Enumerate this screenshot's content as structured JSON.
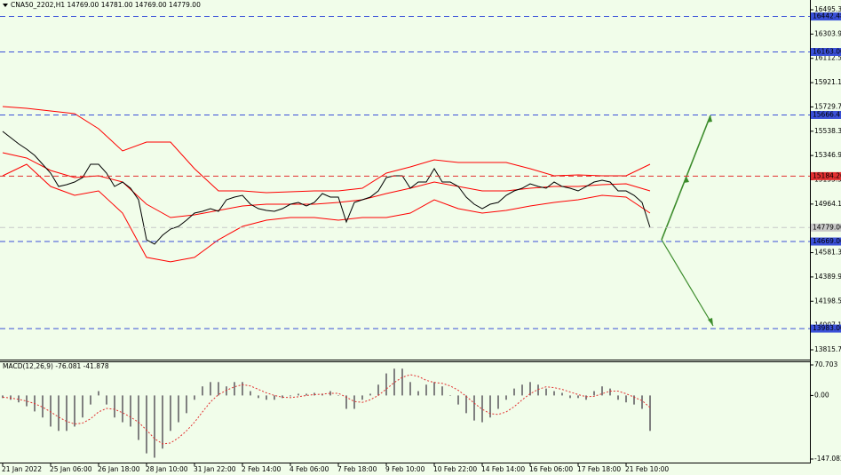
{
  "chart_data": [
    {
      "type": "line",
      "title": "CNA50_2202,H1  14769.00 14781.00 14769.00 14779.00",
      "categories": [
        "21 Jan 2022",
        null,
        null,
        null,
        null,
        null,
        "25 Jan 06:00",
        null,
        null,
        null,
        null,
        null,
        "26 Jan 18:00",
        null,
        null,
        null,
        null,
        null,
        "28 Jan 10:00",
        null,
        null,
        null,
        null,
        null,
        "31 Jan 22:00",
        null,
        null,
        null,
        null,
        null,
        "2 Feb 14:00",
        null,
        null,
        null,
        null,
        null,
        "4 Feb 06:00",
        null,
        null,
        null,
        null,
        null,
        "7 Feb 18:00",
        null,
        null,
        null,
        null,
        null,
        "9 Feb 10:00",
        null,
        null,
        null,
        null,
        null,
        "10 Feb 22:00",
        null,
        null,
        null,
        null,
        null,
        "14 Feb 14:00",
        null,
        null,
        null,
        null,
        null,
        "16 Feb 06:00",
        null,
        null,
        null,
        null,
        null,
        "17 Feb 18:00",
        null,
        null,
        null,
        null,
        null,
        "21 Feb 10:00",
        null,
        null,
        null
      ],
      "values": [
        15537,
        15488,
        15439,
        15397,
        15348,
        15278,
        15208,
        15103,
        15117,
        15138,
        15173,
        15278,
        15278,
        15208,
        15103,
        15138,
        15089,
        14998,
        14683,
        14648,
        14718,
        14767,
        14788,
        14837,
        14893,
        14907,
        14928,
        14907,
        14998,
        15019,
        15033,
        14963,
        14928,
        14914,
        14907,
        14928,
        14963,
        14977,
        14949,
        14977,
        15047,
        15019,
        15019,
        14823,
        14977,
        14998,
        15019,
        15068,
        15173,
        15187,
        15187,
        15089,
        15138,
        15138,
        15243,
        15138,
        15138,
        15103,
        15019,
        14963,
        14928,
        14963,
        14977,
        15033,
        15068,
        15089,
        15124,
        15103,
        15089,
        15138,
        15103,
        15089,
        15068,
        15103,
        15138,
        15152,
        15138,
        15068,
        15068,
        15033,
        14977,
        14779
      ],
      "color": "#000000",
      "bands": {
        "color": "#ff0000",
        "x": [
          0,
          3,
          6,
          9,
          12,
          15,
          18,
          21,
          24,
          27,
          30,
          33,
          36,
          39,
          42,
          45,
          48,
          51,
          54,
          57,
          60,
          63,
          66,
          69,
          72,
          75,
          78,
          81
        ],
        "series": [
          {
            "values": [
              15733,
              15719,
              15698,
              15677,
              15558,
              15383,
              15453,
              15453,
              15243,
              15068,
              15068,
              15054,
              15061,
              15068,
              15068,
              15089,
              15208,
              15257,
              15313,
              15292,
              15292,
              15292,
              15243,
              15187,
              15194,
              15187,
              15187,
              15278
            ]
          },
          {
            "values": [
              15369,
              15327,
              15229,
              15173,
              15187,
              15138,
              14963,
              14858,
              14879,
              14914,
              14949,
              14963,
              14963,
              14963,
              14977,
              14998,
              15047,
              15089,
              15138,
              15103,
              15068,
              15068,
              15089,
              15103,
              15103,
              15117,
              15124,
              15068
            ]
          },
          {
            "values": [
              15187,
              15278,
              15103,
              15033,
              15068,
              14893,
              14544,
              14509,
              14544,
              14683,
              14788,
              14837,
              14858,
              14858,
              14837,
              14858,
              14858,
              14893,
              14998,
              14928,
              14893,
              14914,
              14949,
              14977,
              14998,
              15033,
              15019,
              14893
            ]
          }
        ]
      },
      "levels": [
        {
          "value": 16442.48,
          "label": "16442.48",
          "color": "#3a50d8"
        },
        {
          "value": 16163.0,
          "label": "16163.00",
          "color": "#3a50d8"
        },
        {
          "value": 15666.41,
          "label": "15666.41",
          "color": "#3a50d8"
        },
        {
          "value": 15184.26,
          "label": "15184.26",
          "color": "#e23030"
        },
        {
          "value": 14779.0,
          "label": "14779.00",
          "color": "#c8c8c8"
        },
        {
          "value": 14669.06,
          "label": "14669.06",
          "color": "#3a50d8"
        },
        {
          "value": 13983.0,
          "label": "13983.00",
          "color": "#3a50d8"
        }
      ],
      "ylim": [
        13738.7,
        16572.3
      ],
      "yticks": [
        {
          "value": 16495.3,
          "label": "16495.30"
        },
        {
          "value": 16303.9,
          "label": "16303.90"
        },
        {
          "value": 16112.5,
          "label": "16112.50"
        },
        {
          "value": 15921.1,
          "label": "15921.10"
        },
        {
          "value": 15729.7,
          "label": "15729.70"
        },
        {
          "value": 15538.3,
          "label": "15538.30"
        },
        {
          "value": 15346.9,
          "label": "15346.90"
        },
        {
          "value": 15155.5,
          "label": "15155.50"
        },
        {
          "value": 14964.1,
          "label": "14964.10"
        },
        {
          "value": 14772.7,
          "label": "14772.70"
        },
        {
          "value": 14581.3,
          "label": "14581.30"
        },
        {
          "value": 14389.9,
          "label": "14389.90"
        },
        {
          "value": 14198.5,
          "label": "14198.50"
        },
        {
          "value": 14007.1,
          "label": "14007.10"
        },
        {
          "value": 13815.7,
          "label": "13815.70"
        }
      ]
    },
    {
      "type": "bar",
      "title": "MACD(12,26,9) -76.081 -41.878",
      "values": [
        -6,
        -10,
        -16,
        -25,
        -37,
        -51,
        -72,
        -82,
        -82,
        -72,
        -51,
        -21,
        10,
        -21,
        -51,
        -62,
        -72,
        -103,
        -134,
        -144,
        -123,
        -82,
        -62,
        -41,
        -10,
        21,
        31,
        31,
        21,
        31,
        31,
        10,
        -6,
        -10,
        -10,
        -6,
        -2,
        4,
        4,
        6,
        4,
        10,
        0,
        -31,
        -31,
        -10,
        4,
        25,
        51,
        62,
        62,
        31,
        10,
        25,
        31,
        21,
        0,
        -21,
        -41,
        -58,
        -62,
        -51,
        -31,
        -10,
        16,
        25,
        31,
        25,
        16,
        10,
        6,
        -6,
        -6,
        -10,
        10,
        21,
        16,
        -10,
        -16,
        -21,
        -31,
        -82
      ],
      "color": "#808080",
      "signal": {
        "color": "#e23030",
        "values": [
          -4,
          -6,
          -9,
          -13,
          -19,
          -27,
          -38,
          -50,
          -60,
          -66,
          -64,
          -54,
          -38,
          -30,
          -32,
          -40,
          -50,
          -62,
          -80,
          -100,
          -112,
          -110,
          -98,
          -82,
          -62,
          -38,
          -15,
          2,
          12,
          20,
          25,
          22,
          14,
          6,
          0,
          -4,
          -5,
          -3,
          0,
          2,
          3,
          5,
          5,
          -4,
          -14,
          -16,
          -10,
          0,
          15,
          30,
          42,
          48,
          44,
          35,
          30,
          28,
          22,
          12,
          -2,
          -18,
          -32,
          -42,
          -44,
          -38,
          -26,
          -10,
          4,
          14,
          20,
          18,
          14,
          8,
          2,
          -3,
          -2,
          4,
          10,
          10,
          4,
          -4,
          -12,
          -28
        ]
      },
      "ylim": [
        -155.3,
        78.9
      ],
      "yticks": [
        {
          "value": 70.703,
          "label": "70.703"
        },
        {
          "value": 0,
          "label": "0.00"
        },
        {
          "value": -147.082,
          "label": "-147.082"
        }
      ]
    }
  ]
}
